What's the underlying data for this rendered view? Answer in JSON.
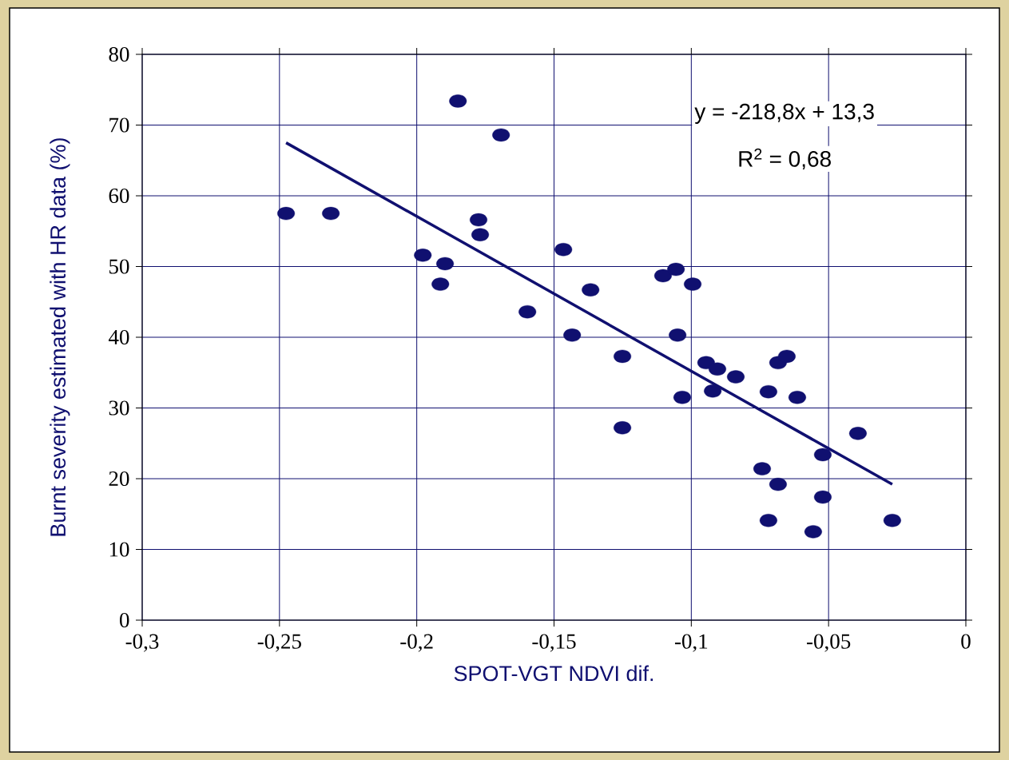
{
  "chart_data": {
    "type": "scatter",
    "xlabel": "SPOT-VGT NDVI dif.",
    "ylabel": "Burnt severity estimated with HR data (%)",
    "annotations": [
      "y = -218,8x + 13,3",
      "R$^{2}$ = 0,68"
    ],
    "xlim": [
      -0.3,
      0
    ],
    "ylim": [
      0,
      80
    ],
    "xticks": [
      {
        "value": -0.3,
        "label": "-0,3"
      },
      {
        "value": -0.25,
        "label": "-0,25"
      },
      {
        "value": -0.2,
        "label": "-0,2"
      },
      {
        "value": -0.15,
        "label": "-0,15"
      },
      {
        "value": -0.1,
        "label": "-0,1"
      },
      {
        "value": -0.05,
        "label": "-0,05"
      },
      0
    ],
    "yticks": [
      0,
      10,
      20,
      30,
      40,
      50,
      60,
      70,
      80
    ],
    "grid": true,
    "marker": "circle",
    "series": [
      {
        "color": "#101070",
        "x": [
          -0.2476,
          -0.2313,
          -0.185,
          -0.1693,
          -0.1775,
          -0.1769,
          -0.1978,
          -0.1897,
          -0.1914,
          -0.1597,
          -0.1466,
          -0.1434,
          -0.1367,
          -0.1251,
          -0.1251,
          -0.1103,
          -0.1056,
          -0.105,
          -0.0995,
          -0.1033,
          -0.0946,
          -0.0905,
          -0.0922,
          -0.0838,
          -0.0684,
          -0.0652,
          -0.0719,
          -0.0614,
          -0.0742,
          -0.0684,
          -0.0719,
          -0.0556,
          -0.0521,
          -0.0521,
          -0.0393,
          -0.0268
        ],
        "values": [
          57.5,
          57.5,
          73.4,
          68.6,
          56.6,
          54.5,
          51.6,
          50.4,
          47.5,
          43.6,
          52.4,
          40.3,
          46.7,
          37.3,
          27.2,
          48.7,
          49.6,
          40.3,
          47.5,
          31.5,
          36.4,
          35.5,
          32.4,
          34.4,
          36.4,
          37.3,
          32.3,
          31.5,
          21.4,
          19.2,
          14.1,
          12.5,
          23.4,
          17.4,
          26.4,
          14.1
        ]
      },
      {
        "type": "line",
        "color": "#101070",
        "line_style": "solid",
        "marker": "none",
        "x": [
          -0.2476,
          -0.0268
        ],
        "values": [
          67.5,
          19.2
        ]
      }
    ]
  }
}
